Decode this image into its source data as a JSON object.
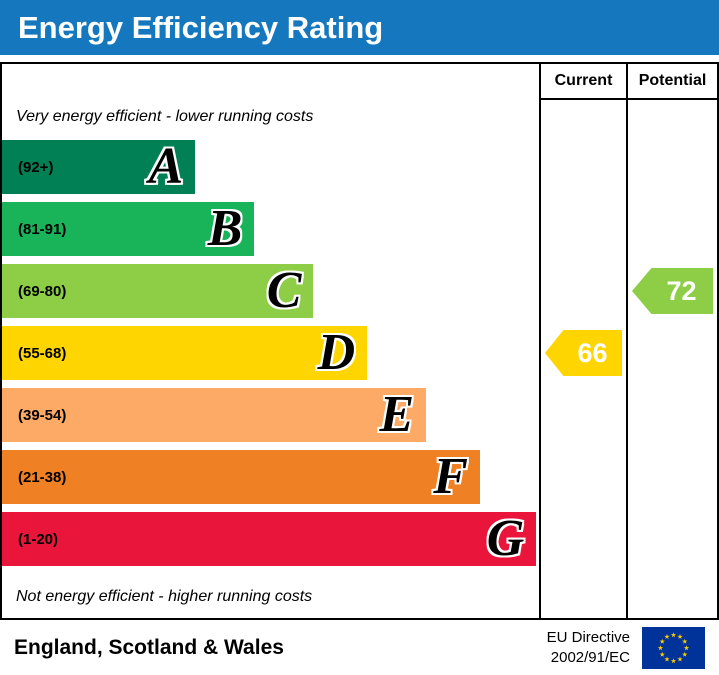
{
  "title": "Energy Efficiency Rating",
  "colors": {
    "header_bg": "#1577bd",
    "header_text": "#ffffff",
    "border": "#000000",
    "flag_bg": "#003399",
    "flag_star": "#ffcc00"
  },
  "columns": {
    "current": "Current",
    "potential": "Potential"
  },
  "notes": {
    "top": "Very energy efficient - lower running costs",
    "bottom": "Not energy efficient - higher running costs"
  },
  "bands": [
    {
      "letter": "A",
      "range": "(92+)",
      "color": "#008054",
      "width_pct": 36
    },
    {
      "letter": "B",
      "range": "(81-91)",
      "color": "#19b459",
      "width_pct": 47
    },
    {
      "letter": "C",
      "range": "(69-80)",
      "color": "#8dce46",
      "width_pct": 58
    },
    {
      "letter": "D",
      "range": "(55-68)",
      "color": "#ffd500",
      "width_pct": 68
    },
    {
      "letter": "E",
      "range": "(39-54)",
      "color": "#fcaa65",
      "width_pct": 79
    },
    {
      "letter": "F",
      "range": "(21-38)",
      "color": "#ef8023",
      "width_pct": 89
    },
    {
      "letter": "G",
      "range": "(1-20)",
      "color": "#e9153b",
      "width_pct": 99.5
    }
  ],
  "current": {
    "label": "Current",
    "value": "66",
    "color": "#ffd500",
    "band_index": 3
  },
  "potential": {
    "label": "Potential",
    "value": "72",
    "color": "#8dce46",
    "band_index": 2
  },
  "footer": {
    "region": "England, Scotland & Wales",
    "directive_line1": "EU Directive",
    "directive_line2": "2002/91/EC"
  },
  "chart_data": {
    "type": "bar",
    "title": "Energy Efficiency Rating",
    "categories": [
      "A (92+)",
      "B (81-91)",
      "C (69-80)",
      "D (55-68)",
      "E (39-54)",
      "F (21-38)",
      "G (1-20)"
    ],
    "band_colors": [
      "#008054",
      "#19b459",
      "#8dce46",
      "#ffd500",
      "#fcaa65",
      "#ef8023",
      "#e9153b"
    ],
    "bar_lengths_pct": [
      36,
      47,
      58,
      68,
      79,
      89,
      99.5
    ],
    "markers": [
      {
        "name": "Current",
        "value": 66,
        "band": "D",
        "color": "#ffd500"
      },
      {
        "name": "Potential",
        "value": 72,
        "band": "C",
        "color": "#8dce46"
      }
    ],
    "annotations": [
      "Very energy efficient - lower running costs",
      "Not energy efficient - higher running costs"
    ],
    "legend": [
      "Current",
      "Potential"
    ],
    "footer": "England, Scotland & Wales — EU Directive 2002/91/EC"
  }
}
